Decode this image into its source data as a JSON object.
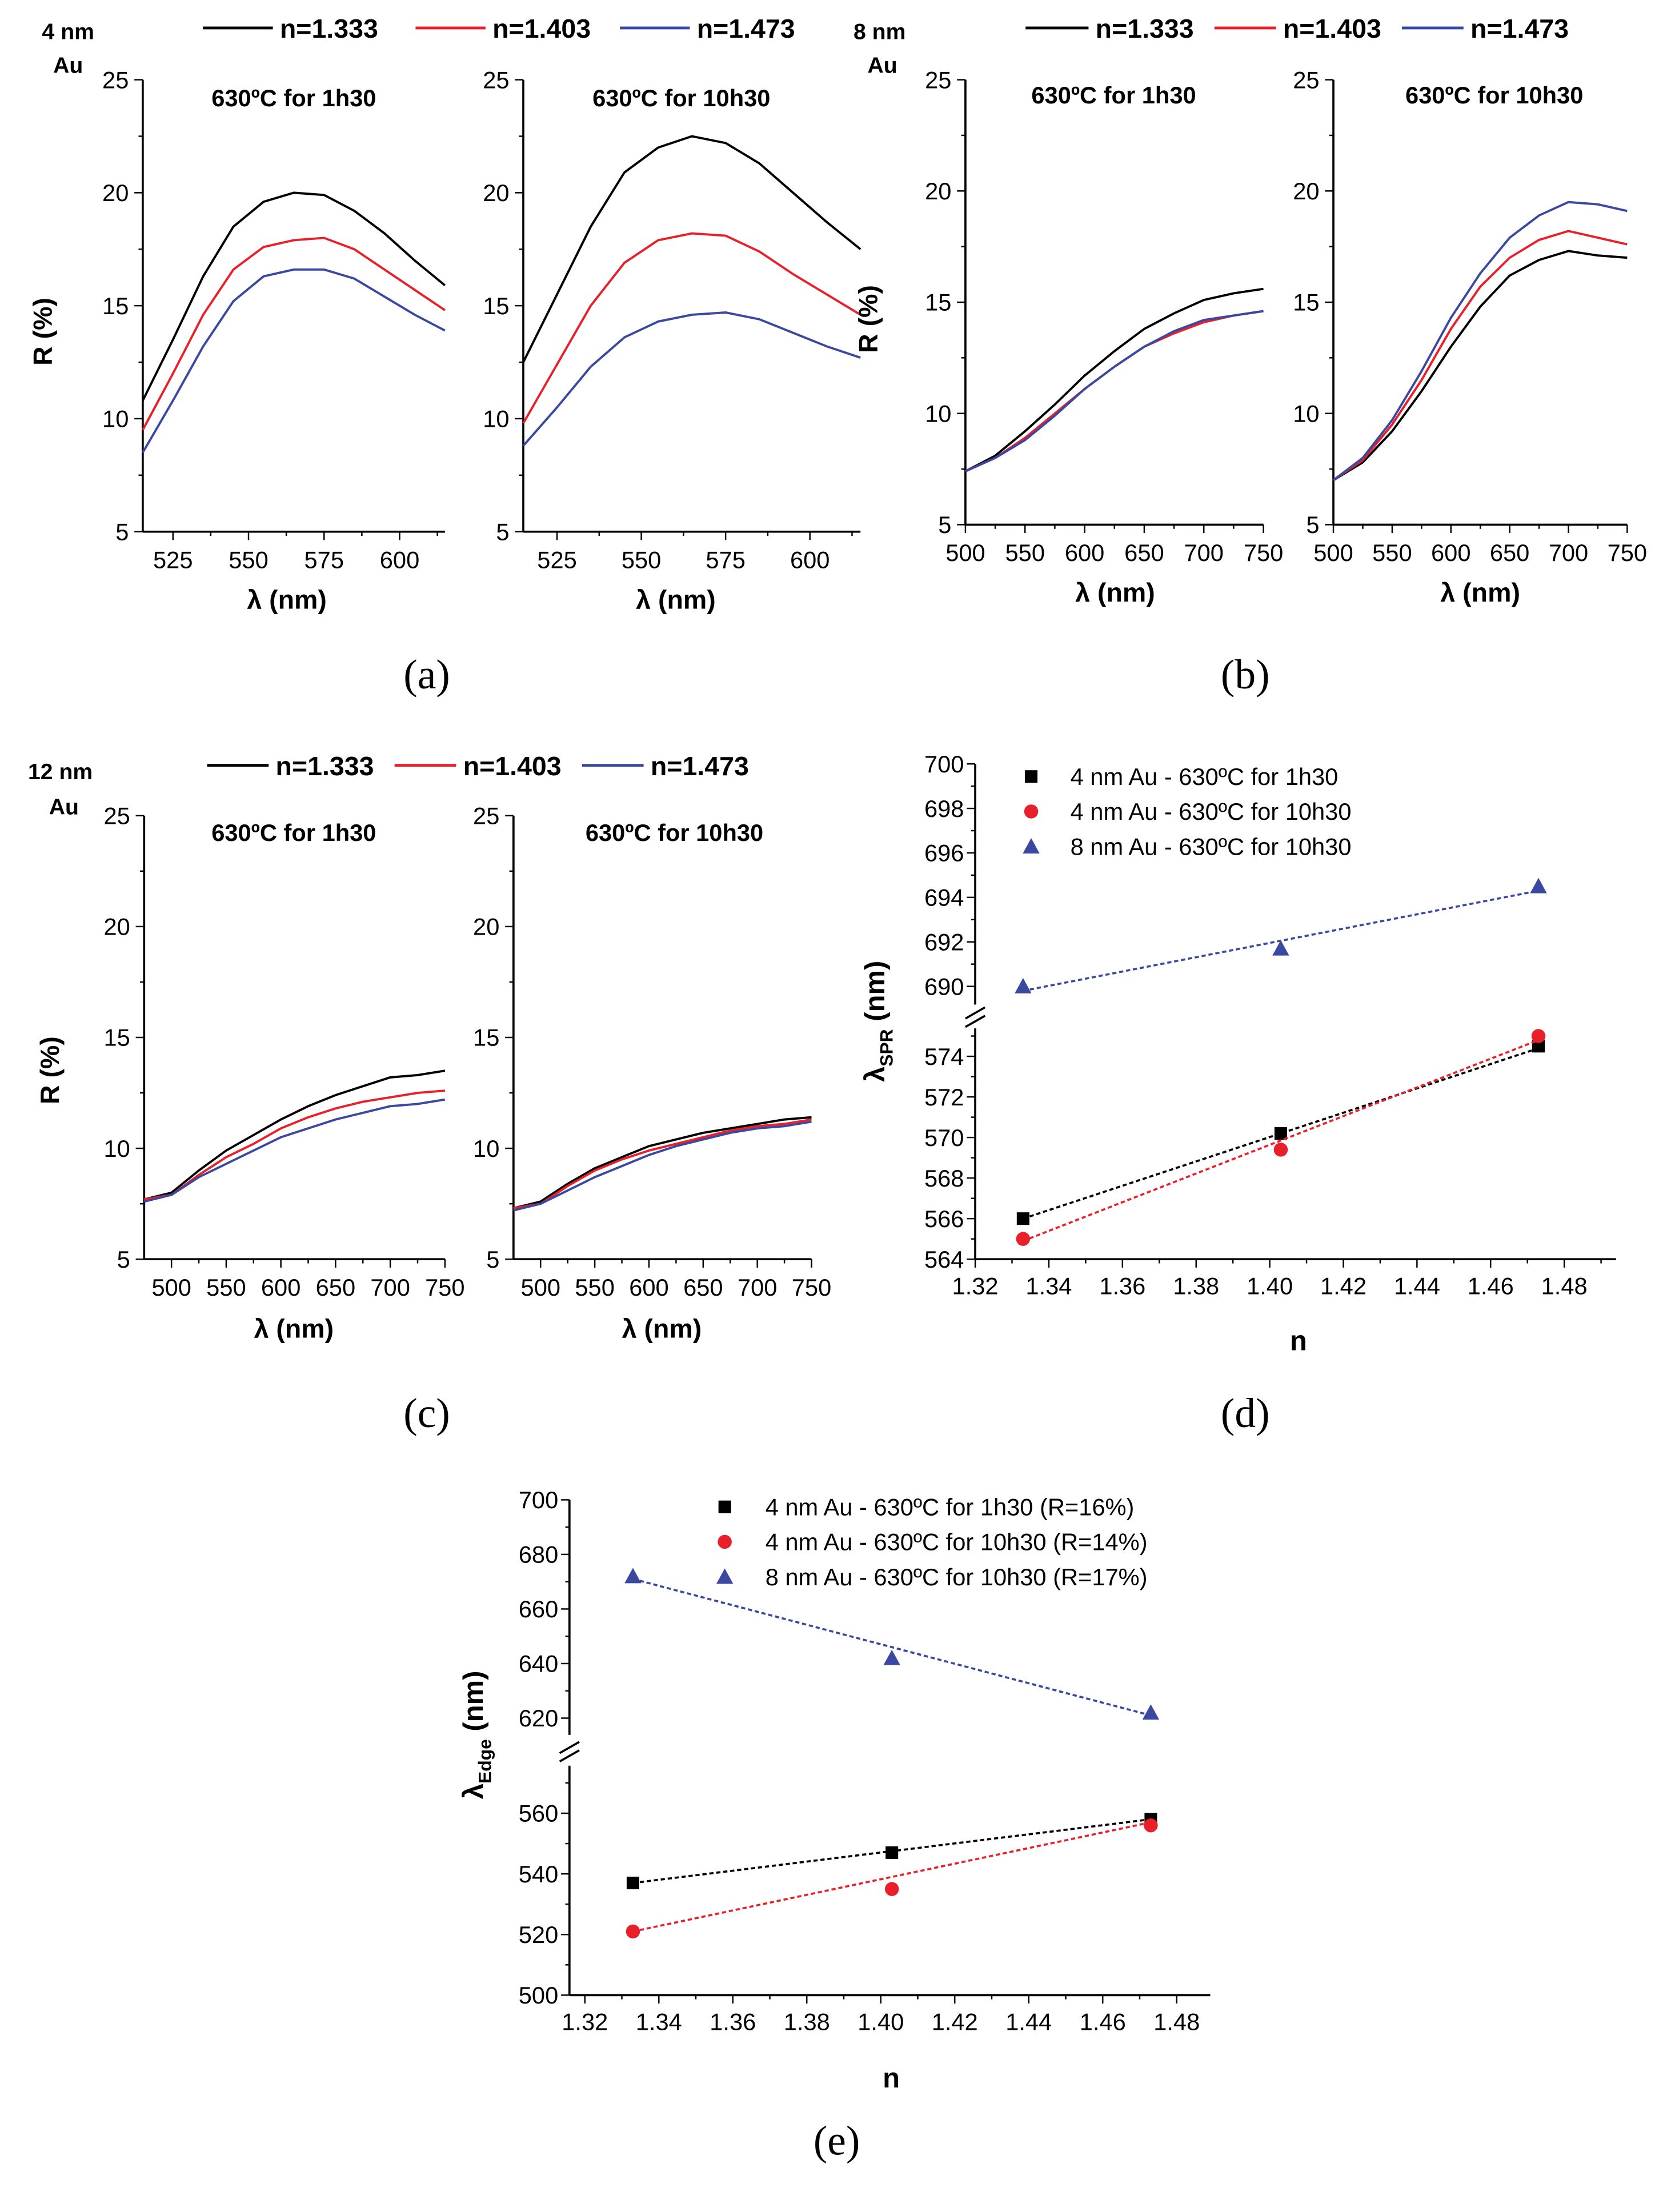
{
  "chart_data": [
    {
      "id": "a",
      "type": "line",
      "panel_label": "(a)",
      "sample_label": [
        "4 nm",
        "Au"
      ],
      "legend": [
        "n=1.333",
        "n=1.403",
        "n=1.473"
      ],
      "colors": [
        "#000000",
        "#e8202a",
        "#3a48a0"
      ],
      "ylabel": "R (%)",
      "xlabel": "λ (nm)",
      "ylim": [
        5,
        25
      ],
      "xlim": [
        515,
        615
      ],
      "yticks": [
        5,
        10,
        15,
        20,
        25
      ],
      "xticks": [
        525,
        550,
        575,
        600
      ],
      "subplots": [
        {
          "title": "630ºC for 1h30",
          "x": [
            515,
            525,
            535,
            545,
            555,
            565,
            575,
            585,
            595,
            605,
            615
          ],
          "series": [
            [
              10.8,
              13.5,
              16.3,
              18.5,
              19.6,
              20.0,
              19.9,
              19.2,
              18.2,
              17.0,
              15.9
            ],
            [
              9.5,
              12.0,
              14.6,
              16.6,
              17.6,
              17.9,
              18.0,
              17.5,
              16.6,
              15.7,
              14.8
            ],
            [
              8.5,
              10.8,
              13.2,
              15.2,
              16.3,
              16.6,
              16.6,
              16.2,
              15.4,
              14.6,
              13.9
            ]
          ]
        },
        {
          "title": "630ºC for 10h30",
          "x": [
            515,
            525,
            535,
            545,
            555,
            565,
            575,
            585,
            595,
            605,
            615
          ],
          "series": [
            [
              12.5,
              15.5,
              18.5,
              20.9,
              22.0,
              22.5,
              22.2,
              21.3,
              20.0,
              18.7,
              17.5
            ],
            [
              9.8,
              12.4,
              15.0,
              16.9,
              17.9,
              18.2,
              18.1,
              17.4,
              16.4,
              15.5,
              14.6
            ],
            [
              8.8,
              10.5,
              12.3,
              13.6,
              14.3,
              14.6,
              14.7,
              14.4,
              13.8,
              13.2,
              12.7
            ]
          ]
        }
      ]
    },
    {
      "id": "b",
      "type": "line",
      "panel_label": "(b)",
      "sample_label": [
        "8 nm",
        "Au"
      ],
      "legend": [
        "n=1.333",
        "n=1.403",
        "n=1.473"
      ],
      "colors": [
        "#000000",
        "#e8202a",
        "#3a48a0"
      ],
      "ylabel": "R (%)",
      "xlabel": "λ (nm)",
      "ylim": [
        5,
        25
      ],
      "xlim": [
        500,
        750
      ],
      "yticks": [
        5,
        10,
        15,
        20,
        25
      ],
      "xticks": [
        500,
        550,
        600,
        650,
        700,
        750
      ],
      "subplots": [
        {
          "title": "630ºC for 1h30",
          "x": [
            500,
            525,
            550,
            575,
            600,
            625,
            650,
            675,
            700,
            725,
            750
          ],
          "series": [
            [
              7.4,
              8.1,
              9.2,
              10.4,
              11.7,
              12.8,
              13.8,
              14.5,
              15.1,
              15.4,
              15.6
            ],
            [
              7.4,
              8.0,
              8.9,
              10.0,
              11.1,
              12.1,
              13.0,
              13.6,
              14.1,
              14.4,
              14.6
            ],
            [
              7.4,
              8.0,
              8.8,
              9.9,
              11.1,
              12.1,
              13.0,
              13.7,
              14.2,
              14.4,
              14.6
            ]
          ]
        },
        {
          "title": "630ºC for 10h30",
          "x": [
            500,
            525,
            550,
            575,
            600,
            625,
            650,
            675,
            700,
            725,
            750
          ],
          "series": [
            [
              7.0,
              7.8,
              9.2,
              11.0,
              13.0,
              14.8,
              16.2,
              16.9,
              17.3,
              17.1,
              17.0
            ],
            [
              7.0,
              7.9,
              9.5,
              11.5,
              13.8,
              15.7,
              17.0,
              17.8,
              18.2,
              17.9,
              17.6
            ],
            [
              7.0,
              8.0,
              9.7,
              11.9,
              14.3,
              16.3,
              17.9,
              18.9,
              19.5,
              19.4,
              19.1
            ]
          ]
        }
      ]
    },
    {
      "id": "c",
      "type": "line",
      "panel_label": "(c)",
      "sample_label": [
        "12 nm",
        "Au"
      ],
      "legend": [
        "n=1.333",
        "n=1.403",
        "n=1.473"
      ],
      "colors": [
        "#000000",
        "#e8202a",
        "#3a48a0"
      ],
      "ylabel": "R (%)",
      "xlabel": "λ (nm)",
      "ylim": [
        5,
        25
      ],
      "xlim": [
        475,
        750
      ],
      "yticks": [
        5,
        10,
        15,
        20,
        25
      ],
      "xticks": [
        500,
        550,
        600,
        650,
        700,
        750
      ],
      "subplots": [
        {
          "title": "630ºC for 1h30",
          "x": [
            475,
            500,
            525,
            550,
            575,
            600,
            625,
            650,
            675,
            700,
            725,
            750
          ],
          "series": [
            [
              7.7,
              8.0,
              9.0,
              9.9,
              10.6,
              11.3,
              11.9,
              12.4,
              12.8,
              13.2,
              13.3,
              13.5
            ],
            [
              7.7,
              7.9,
              8.8,
              9.6,
              10.2,
              10.9,
              11.4,
              11.8,
              12.1,
              12.3,
              12.5,
              12.6
            ],
            [
              7.6,
              7.9,
              8.7,
              9.3,
              9.9,
              10.5,
              10.9,
              11.3,
              11.6,
              11.9,
              12.0,
              12.2
            ]
          ]
        },
        {
          "title": "630ºC for 10h30",
          "x": [
            475,
            500,
            525,
            550,
            575,
            600,
            625,
            650,
            675,
            700,
            725,
            750
          ],
          "series": [
            [
              7.3,
              7.6,
              8.4,
              9.1,
              9.6,
              10.1,
              10.4,
              10.7,
              10.9,
              11.1,
              11.3,
              11.4
            ],
            [
              7.3,
              7.5,
              8.3,
              9.0,
              9.5,
              9.9,
              10.2,
              10.5,
              10.8,
              11.0,
              11.1,
              11.3
            ],
            [
              7.2,
              7.5,
              8.1,
              8.7,
              9.2,
              9.7,
              10.1,
              10.4,
              10.7,
              10.9,
              11.0,
              11.2
            ]
          ]
        }
      ]
    },
    {
      "id": "d",
      "type": "scatter",
      "panel_label": "(d)",
      "xlabel": "n",
      "ylabel_main": "λ",
      "ylabel_sub": "SPR",
      "ylabel_unit": " (nm)",
      "xlim": [
        1.32,
        1.49
      ],
      "xticks": [
        "1.32",
        "1.34",
        "1.36",
        "1.38",
        "1.40",
        "1.42",
        "1.44",
        "1.46",
        "1.48"
      ],
      "y_upper_ticks": [
        690,
        692,
        694,
        696,
        698,
        700
      ],
      "y_lower_ticks": [
        564,
        566,
        568,
        570,
        572,
        574
      ],
      "x": [
        1.333,
        1.403,
        1.473
      ],
      "series": [
        {
          "name": "4 nm Au - 630ºC for 1h30",
          "marker": "square",
          "color": "#000000",
          "values": [
            566.0,
            570.2,
            574.5
          ],
          "fit": [
            566.0,
            574.4
          ]
        },
        {
          "name": "4 nm Au - 630ºC for 10h30",
          "marker": "circle",
          "color": "#e8202a",
          "values": [
            565.0,
            569.4,
            575.0
          ],
          "fit": [
            564.9,
            574.8
          ]
        },
        {
          "name": "8 nm Au - 630ºC for 10h30",
          "marker": "triangle",
          "color": "#3a48a0",
          "values": [
            690.0,
            691.7,
            694.5
          ],
          "fit": [
            689.8,
            694.3
          ]
        }
      ]
    },
    {
      "id": "e",
      "type": "scatter",
      "panel_label": "(e)",
      "xlabel": "n",
      "ylabel_main": "λ",
      "ylabel_sub": "Edge",
      "ylabel_unit": " (nm)",
      "xlim": [
        1.32,
        1.49
      ],
      "xticks": [
        "1.32",
        "1.34",
        "1.36",
        "1.38",
        "1.40",
        "1.42",
        "1.44",
        "1.46",
        "1.48"
      ],
      "y_upper_ticks": [
        620,
        640,
        660,
        680,
        700
      ],
      "y_lower_ticks": [
        500,
        520,
        540,
        560
      ],
      "x": [
        1.333,
        1.403,
        1.473
      ],
      "series": [
        {
          "name": "4 nm Au - 630ºC for 1h30 (R=16%)",
          "marker": "square",
          "color": "#000000",
          "values": [
            537,
            547,
            558
          ],
          "fit": [
            537,
            558
          ]
        },
        {
          "name": "4 nm Au - 630ºC for 10h30 (R=14%)",
          "marker": "circle",
          "color": "#e8202a",
          "values": [
            521,
            535,
            556
          ],
          "fit": [
            521,
            557
          ]
        },
        {
          "name": "8 nm Au - 630ºC for 10h30 (R=17%)",
          "marker": "triangle",
          "color": "#3a48a0",
          "values": [
            672,
            642,
            622
          ],
          "fit": [
            671,
            621
          ]
        }
      ]
    }
  ]
}
